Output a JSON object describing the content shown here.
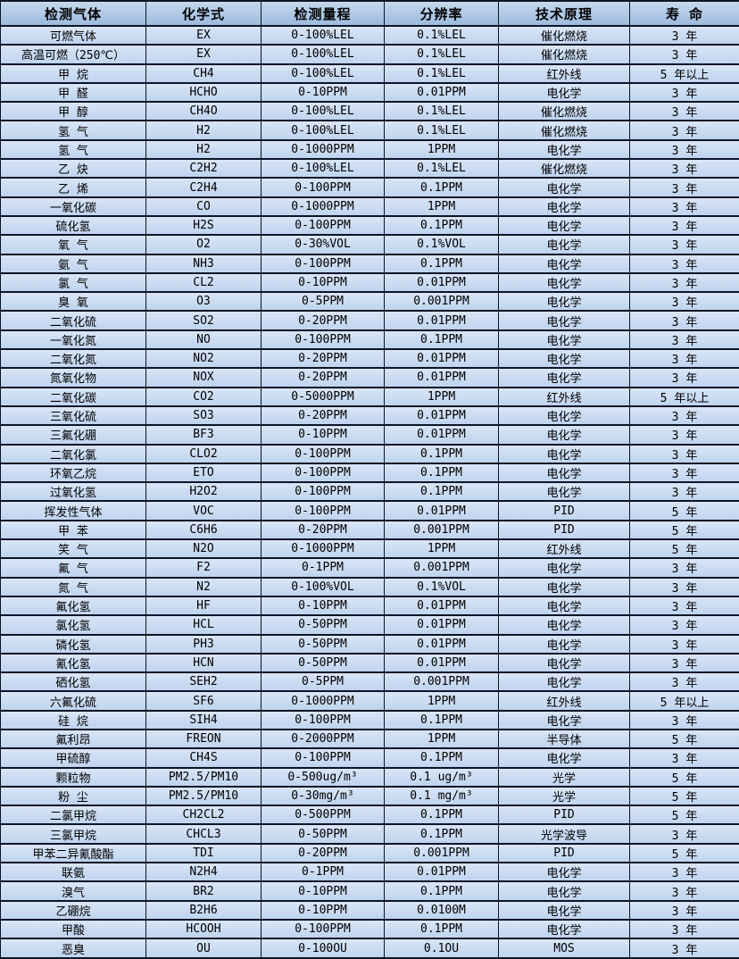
{
  "colors": {
    "header_bg_top": "#c6d8ee",
    "header_bg_bottom": "#9cbbde",
    "row_bg_top": "#d9e5f6",
    "row_bg_bottom": "#bfd4ef",
    "border": "#0c1526",
    "text": "#000000"
  },
  "table": {
    "columns": [
      "检测气体",
      "化学式",
      "检测量程",
      "分辨率",
      "技术原理",
      "寿  命"
    ],
    "rows": [
      [
        "可燃气体",
        "EX",
        "0-100%LEL",
        "0.1%LEL",
        "催化燃烧",
        "3 年"
      ],
      [
        "高温可燃（250℃）",
        "EX",
        "0-100%LEL",
        "0.1%LEL",
        "催化燃烧",
        "3 年"
      ],
      [
        "甲  烷",
        "CH4",
        "0-100%LEL",
        "0.1%LEL",
        "红外线",
        "5 年以上"
      ],
      [
        "甲  醛",
        "HCHO",
        "0-10PPM",
        "0.01PPM",
        "电化学",
        "3 年"
      ],
      [
        "甲  醇",
        "CH4O",
        "0-100%LEL",
        "0.1%LEL",
        "催化燃烧",
        "3 年"
      ],
      [
        "氢  气",
        "H2",
        "0-100%LEL",
        "0.1%LEL",
        "催化燃烧",
        "3 年"
      ],
      [
        "氢  气",
        "H2",
        "0-1000PPM",
        "1PPM",
        "电化学",
        "3 年"
      ],
      [
        "乙  炔",
        "C2H2",
        "0-100%LEL",
        "0.1%LEL",
        "催化燃烧",
        "3 年"
      ],
      [
        "乙  烯",
        "C2H4",
        "0-100PPM",
        "0.1PPM",
        "电化学",
        "3 年"
      ],
      [
        "一氧化碳",
        "CO",
        "0-1000PPM",
        "1PPM",
        "电化学",
        "3 年"
      ],
      [
        "硫化氢",
        "H2S",
        "0-100PPM",
        "0.1PPM",
        "电化学",
        "3 年"
      ],
      [
        "氧  气",
        "O2",
        "0-30%VOL",
        "0.1%VOL",
        "电化学",
        "3 年"
      ],
      [
        "氨  气",
        "NH3",
        "0-100PPM",
        "0.1PPM",
        "电化学",
        "3 年"
      ],
      [
        "氯  气",
        "CL2",
        "0-10PPM",
        "0.01PPM",
        "电化学",
        "3 年"
      ],
      [
        "臭  氧",
        "O3",
        "0-5PPM",
        "0.001PPM",
        "电化学",
        "3 年"
      ],
      [
        "二氧化硫",
        "SO2",
        "0-20PPM",
        "0.01PPM",
        "电化学",
        "3 年"
      ],
      [
        "一氧化氮",
        "NO",
        "0-100PPM",
        "0.1PPM",
        "电化学",
        "3 年"
      ],
      [
        "二氧化氮",
        "NO2",
        "0-20PPM",
        "0.01PPM",
        "电化学",
        "3 年"
      ],
      [
        "氮氧化物",
        "NOX",
        "0-20PPM",
        "0.01PPM",
        "电化学",
        "3 年"
      ],
      [
        "二氧化碳",
        "CO2",
        "0-5000PPM",
        "1PPM",
        "红外线",
        "5 年以上"
      ],
      [
        "三氧化硫",
        "SO3",
        "0-20PPM",
        "0.01PPM",
        "电化学",
        "3 年"
      ],
      [
        "三氟化硼",
        "BF3",
        "0-10PPM",
        "0.01PPM",
        "电化学",
        "3 年"
      ],
      [
        "二氧化氯",
        "CLO2",
        "0-100PPM",
        "0.1PPM",
        "电化学",
        "3 年"
      ],
      [
        "环氧乙烷",
        "ETO",
        "0-100PPM",
        "0.1PPM",
        "电化学",
        "3 年"
      ],
      [
        "过氧化氢",
        "H2O2",
        "0-100PPM",
        "0.1PPM",
        "电化学",
        "3 年"
      ],
      [
        "挥发性气体",
        "VOC",
        "0-100PPM",
        "0.01PPM",
        "PID",
        "5 年"
      ],
      [
        "甲  苯",
        "C6H6",
        "0-20PPM",
        "0.001PPM",
        "PID",
        "5 年"
      ],
      [
        "笑  气",
        "N2O",
        "0-1000PPM",
        "1PPM",
        "红外线",
        "5 年"
      ],
      [
        "氟  气",
        "F2",
        "0-1PPM",
        "0.001PPM",
        "电化学",
        "3 年"
      ],
      [
        "氮  气",
        "N2",
        "0-100%VOL",
        "0.1%VOL",
        "电化学",
        "3 年"
      ],
      [
        "氟化氢",
        "HF",
        "0-10PPM",
        "0.01PPM",
        "电化学",
        "3 年"
      ],
      [
        "氯化氢",
        "HCL",
        "0-50PPM",
        "0.01PPM",
        "电化学",
        "3 年"
      ],
      [
        "磷化氢",
        "PH3",
        "0-50PPM",
        "0.01PPM",
        "电化学",
        "3 年"
      ],
      [
        "氰化氢",
        "HCN",
        "0-50PPM",
        "0.01PPM",
        "电化学",
        "3 年"
      ],
      [
        "硒化氢",
        "SEH2",
        "0-5PPM",
        "0.001PPM",
        "电化学",
        "3 年"
      ],
      [
        "六氟化硫",
        "SF6",
        "0-1000PPM",
        "1PPM",
        "红外线",
        "5 年以上"
      ],
      [
        "硅  烷",
        "SIH4",
        "0-100PPM",
        "0.1PPM",
        "电化学",
        "3 年"
      ],
      [
        "氟利昂",
        "FREON",
        "0-2000PPM",
        "1PPM",
        "半导体",
        "5 年"
      ],
      [
        "甲硫醇",
        "CH4S",
        "0-100PPM",
        "0.1PPM",
        "电化学",
        "3 年"
      ],
      [
        "颗粒物",
        "PM2.5/PM10",
        "0-500ug/m³",
        "0.1 ug/m³",
        "光学",
        "5 年"
      ],
      [
        "粉  尘",
        "PM2.5/PM10",
        "0-30mg/m³",
        "0.1 mg/m³",
        "光学",
        "5 年"
      ],
      [
        "二氯甲烷",
        "CH2CL2",
        "0-500PPM",
        "0.1PPM",
        "PID",
        "5 年"
      ],
      [
        "三氯甲烷",
        "CHCL3",
        "0-50PPM",
        "0.1PPM",
        "光学波导",
        "3 年"
      ],
      [
        "甲苯二异氰酸酯",
        "TDI",
        "0-20PPM",
        "0.001PPM",
        "PID",
        "5 年"
      ],
      [
        "联氨",
        "N2H4",
        "0-1PPM",
        "0.01PPM",
        "电化学",
        "3 年"
      ],
      [
        "溴气",
        "BR2",
        "0-10PPM",
        "0.1PPM",
        "电化学",
        "3 年"
      ],
      [
        "乙硼烷",
        "B2H6",
        "0-10PPM",
        "0.0100M",
        "电化学",
        "3 年"
      ],
      [
        "甲酸",
        "HCOOH",
        "0-100PPM",
        "0.1PPM",
        "电化学",
        "3 年"
      ],
      [
        "恶臭",
        "OU",
        "0-100OU",
        "0.1OU",
        "MOS",
        "3 年"
      ]
    ]
  }
}
